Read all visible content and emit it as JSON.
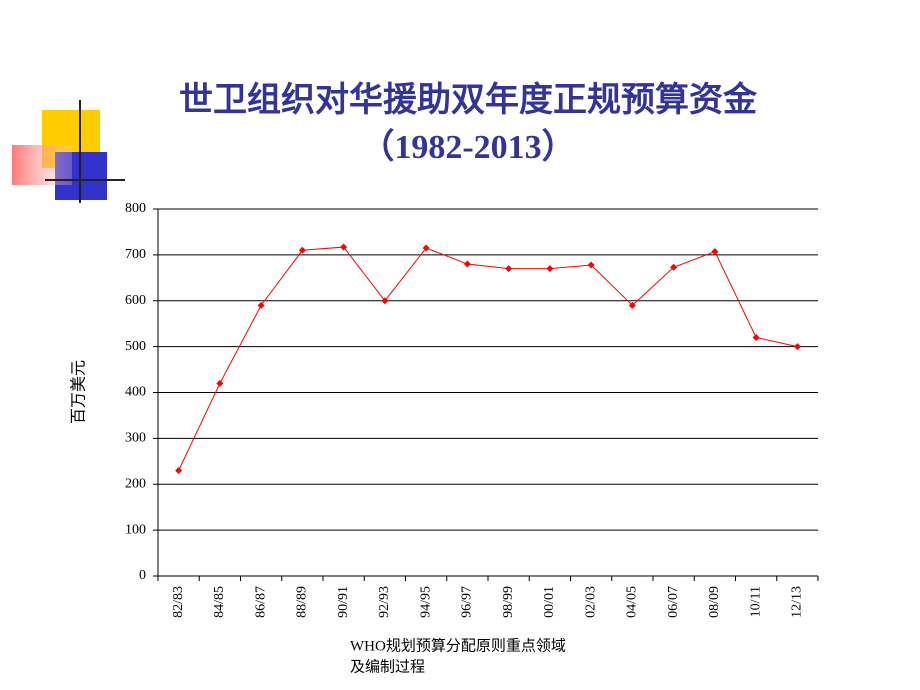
{
  "chart_data": {
    "type": "line",
    "title": "世卫组织对华援助双年度正规预算资金",
    "subtitle": "（1982-2013）",
    "y_label": "百万美元",
    "categories": [
      "82/83",
      "84/85",
      "86/87",
      "88/89",
      "90/91",
      "92/93",
      "94/95",
      "96/97",
      "98/99",
      "00/01",
      "02/03",
      "04/05",
      "06/07",
      "08/09",
      "10/11",
      "12/13"
    ],
    "series": [
      {
        "color": "#ff0000",
        "values": [
          230,
          420,
          590,
          710,
          717,
          600,
          715,
          680,
          670,
          670,
          678,
          590,
          673,
          707,
          520,
          500
        ]
      }
    ],
    "ylim": [
      0,
      800
    ],
    "yticks": [
      0,
      100,
      200,
      300,
      400,
      500,
      600,
      700,
      800
    ],
    "grid": true
  },
  "footer": [
    "WHO规划预算分配原则重点领域",
    "及编制过程"
  ]
}
